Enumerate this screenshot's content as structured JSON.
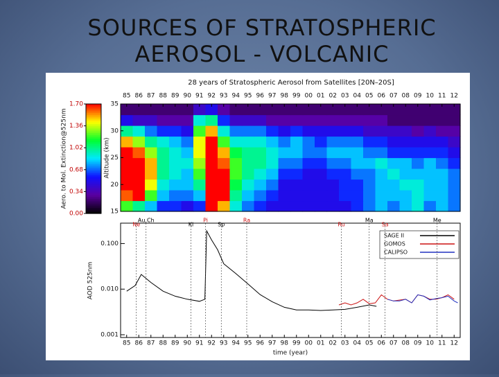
{
  "slide": {
    "title_lines": [
      "SOURCES OF STRATOSPHERIC",
      "AEROSOL - VOLCANIC"
    ]
  },
  "chart_data": [
    {
      "type": "heatmap",
      "title": "28 years of Stratospheric Aerosol from Satellites [20N–20S]",
      "ylabel": "Altitude (km)",
      "colorbar_label": "Aero. to Mol. Extinction@525nm",
      "x": [
        1985,
        1986,
        1987,
        1988,
        1989,
        1990,
        1991,
        1992,
        1993,
        1994,
        1995,
        1996,
        1997,
        1998,
        1999,
        2000,
        2001,
        2002,
        2003,
        2004,
        2005,
        2006,
        2007,
        2008,
        2009,
        2010,
        2011,
        2012
      ],
      "y": [
        16,
        18,
        20,
        22,
        24,
        26,
        28,
        30,
        32,
        34
      ],
      "values": [
        [
          1.2,
          1.0,
          0.8,
          0.6,
          0.6,
          0.5,
          0.6,
          1.7,
          1.5,
          0.9,
          0.7,
          0.6,
          0.5,
          0.5,
          0.5,
          0.5,
          0.5,
          0.5,
          0.5,
          0.6,
          0.7,
          0.8,
          0.7,
          0.8,
          0.9,
          0.7,
          0.8,
          0.7
        ],
        [
          1.6,
          1.7,
          1.2,
          0.8,
          0.7,
          0.7,
          0.8,
          1.7,
          1.7,
          1.0,
          0.8,
          0.7,
          0.6,
          0.5,
          0.5,
          0.5,
          0.5,
          0.5,
          0.6,
          0.6,
          0.7,
          0.8,
          0.8,
          0.8,
          0.9,
          0.8,
          0.8,
          0.7
        ],
        [
          1.7,
          1.7,
          1.4,
          0.9,
          0.8,
          0.8,
          1.0,
          1.7,
          1.7,
          1.1,
          0.9,
          0.8,
          0.7,
          0.5,
          0.5,
          0.5,
          0.5,
          0.5,
          0.6,
          0.6,
          0.7,
          0.8,
          0.8,
          0.9,
          0.9,
          0.8,
          0.8,
          0.7
        ],
        [
          1.7,
          1.7,
          1.5,
          1.0,
          0.9,
          0.8,
          1.2,
          1.7,
          1.7,
          1.2,
          1.0,
          0.9,
          0.8,
          0.6,
          0.6,
          0.5,
          0.5,
          0.6,
          0.6,
          0.7,
          0.7,
          0.8,
          0.9,
          0.8,
          0.8,
          0.8,
          0.8,
          0.7
        ],
        [
          1.7,
          1.7,
          1.5,
          1.0,
          0.9,
          0.9,
          1.3,
          1.7,
          1.6,
          1.2,
          1.0,
          1.0,
          0.9,
          0.7,
          0.7,
          0.6,
          0.6,
          0.7,
          0.7,
          0.8,
          0.8,
          0.9,
          0.8,
          0.8,
          0.7,
          0.8,
          0.7,
          0.6
        ],
        [
          1.7,
          1.6,
          1.3,
          1.0,
          0.9,
          0.8,
          1.4,
          1.7,
          1.5,
          1.1,
          1.0,
          1.0,
          0.9,
          0.8,
          0.8,
          0.7,
          0.7,
          0.8,
          0.8,
          0.8,
          0.7,
          0.7,
          0.6,
          0.6,
          0.6,
          0.6,
          0.6,
          0.5
        ],
        [
          1.5,
          1.3,
          1.0,
          0.9,
          0.8,
          0.7,
          1.4,
          1.7,
          1.2,
          0.9,
          0.9,
          0.9,
          0.8,
          0.7,
          0.8,
          0.7,
          0.6,
          0.7,
          0.7,
          0.7,
          0.6,
          0.6,
          0.5,
          0.5,
          0.5,
          0.5,
          0.5,
          0.4
        ],
        [
          1.0,
          0.9,
          0.7,
          0.6,
          0.6,
          0.5,
          1.2,
          1.5,
          0.9,
          0.7,
          0.7,
          0.7,
          0.6,
          0.5,
          0.6,
          0.5,
          0.5,
          0.5,
          0.5,
          0.5,
          0.4,
          0.4,
          0.4,
          0.4,
          0.3,
          0.4,
          0.3,
          0.3
        ],
        [
          0.5,
          0.4,
          0.4,
          0.3,
          0.3,
          0.3,
          0.9,
          1.0,
          0.6,
          0.4,
          0.4,
          0.4,
          0.3,
          0.3,
          0.3,
          0.3,
          0.3,
          0.3,
          0.3,
          0.3,
          0.3,
          0.3,
          0.2,
          0.2,
          0.2,
          0.2,
          0.2,
          0.2
        ],
        [
          0.2,
          0.2,
          0.2,
          0.2,
          0.2,
          0.2,
          0.4,
          0.5,
          0.3,
          0.2,
          0.2,
          0.2,
          0.2,
          0.2,
          0.2,
          0.2,
          0.2,
          0.2,
          0.2,
          0.2,
          0.2,
          0.2,
          0.2,
          0.2,
          0.2,
          0.2,
          0.2,
          0.2
        ]
      ],
      "xlim": [
        1984.5,
        2012.5
      ],
      "ylim": [
        15,
        35
      ],
      "clim": [
        0,
        1.7
      ],
      "colormap": [
        "#000000",
        "#5a00a0",
        "#1010ff",
        "#00e8ff",
        "#00ff30",
        "#ffff00",
        "#ff0000"
      ],
      "xticks": [
        {
          "value": 1985,
          "label": "85"
        },
        {
          "value": 1986,
          "label": "86"
        },
        {
          "value": 1987,
          "label": "87"
        },
        {
          "value": 1988,
          "label": "88"
        },
        {
          "value": 1989,
          "label": "89"
        },
        {
          "value": 1990,
          "label": "90"
        },
        {
          "value": 1991,
          "label": "91"
        },
        {
          "value": 1992,
          "label": "92"
        },
        {
          "value": 1993,
          "label": "93"
        },
        {
          "value": 1994,
          "label": "94"
        },
        {
          "value": 1995,
          "label": "95"
        },
        {
          "value": 1996,
          "label": "96"
        },
        {
          "value": 1997,
          "label": "97"
        },
        {
          "value": 1998,
          "label": "98"
        },
        {
          "value": 1999,
          "label": "99"
        },
        {
          "value": 2000,
          "label": "00"
        },
        {
          "value": 2001,
          "label": "01"
        },
        {
          "value": 2002,
          "label": "02"
        },
        {
          "value": 2003,
          "label": "03"
        },
        {
          "value": 2004,
          "label": "04"
        },
        {
          "value": 2005,
          "label": "05"
        },
        {
          "value": 2006,
          "label": "06"
        },
        {
          "value": 2007,
          "label": "07"
        },
        {
          "value": 2008,
          "label": "08"
        },
        {
          "value": 2009,
          "label": "09"
        },
        {
          "value": 2010,
          "label": "10"
        },
        {
          "value": 2011,
          "label": "11"
        },
        {
          "value": 2012,
          "label": "12"
        }
      ],
      "yticks": [
        15,
        20,
        25,
        30,
        35
      ],
      "cticks": [
        {
          "value": 0,
          "label": "0.00"
        },
        {
          "value": 0.34,
          "label": "0.34"
        },
        {
          "value": 0.68,
          "label": "0.68"
        },
        {
          "value": 1.02,
          "label": "1.02"
        },
        {
          "value": 1.36,
          "label": "1.36"
        },
        {
          "value": 1.7,
          "label": "1.70"
        }
      ]
    },
    {
      "type": "line",
      "xlabel": "time (year)",
      "ylabel": "AOD 525nm",
      "log_y": true,
      "legend": "upper right",
      "xlim": [
        1984.5,
        2012.5
      ],
      "ylim": [
        0.00087,
        0.28
      ],
      "xticks": [
        {
          "value": 1985,
          "label": "85"
        },
        {
          "value": 1986,
          "label": "86"
        },
        {
          "value": 1987,
          "label": "87"
        },
        {
          "value": 1988,
          "label": "88"
        },
        {
          "value": 1989,
          "label": "89"
        },
        {
          "value": 1990,
          "label": "90"
        },
        {
          "value": 1991,
          "label": "91"
        },
        {
          "value": 1992,
          "label": "92"
        },
        {
          "value": 1993,
          "label": "93"
        },
        {
          "value": 1994,
          "label": "94"
        },
        {
          "value": 1995,
          "label": "95"
        },
        {
          "value": 1996,
          "label": "96"
        },
        {
          "value": 1997,
          "label": "97"
        },
        {
          "value": 1998,
          "label": "98"
        },
        {
          "value": 1999,
          "label": "99"
        },
        {
          "value": 2000,
          "label": "00"
        },
        {
          "value": 2001,
          "label": "01"
        },
        {
          "value": 2002,
          "label": "02"
        },
        {
          "value": 2003,
          "label": "03"
        },
        {
          "value": 2004,
          "label": "04"
        },
        {
          "value": 2005,
          "label": "05"
        },
        {
          "value": 2006,
          "label": "06"
        },
        {
          "value": 2007,
          "label": "07"
        },
        {
          "value": 2008,
          "label": "08"
        },
        {
          "value": 2009,
          "label": "09"
        },
        {
          "value": 2010,
          "label": "10"
        },
        {
          "value": 2011,
          "label": "11"
        },
        {
          "value": 2012,
          "label": "12"
        }
      ],
      "yticks": [
        0.001,
        {
          "value": 0.01,
          "label": "0.010"
        },
        {
          "value": 0.1,
          "label": "0.100"
        }
      ],
      "series": [
        {
          "name": "SAGE II",
          "color": "#000000",
          "x": [
            1985,
            1985.7,
            1986.2,
            1987,
            1988,
            1989,
            1990,
            1991,
            1991.45,
            1991.6,
            1992,
            1992.5,
            1993,
            1994,
            1995,
            1996,
            1997,
            1998,
            1999,
            2000,
            2001,
            2002,
            2003,
            2004,
            2005,
            2005.6
          ],
          "values": [
            0.009,
            0.012,
            0.021,
            0.014,
            0.009,
            0.007,
            0.006,
            0.0054,
            0.006,
            0.19,
            0.12,
            0.073,
            0.036,
            0.022,
            0.013,
            0.0076,
            0.0053,
            0.004,
            0.0035,
            0.0035,
            0.0034,
            0.0035,
            0.0036,
            0.004,
            0.0045,
            0.0042
          ]
        },
        {
          "name": "GOMOS",
          "color": "#cc1010",
          "x": [
            2002.5,
            2003,
            2003.5,
            2004,
            2004.5,
            2005,
            2005.5,
            2006,
            2006.5,
            2007,
            2008,
            2008.5,
            2009,
            2009.5,
            2010,
            2010.5,
            2011,
            2011.5,
            2012
          ],
          "values": [
            0.0045,
            0.005,
            0.0045,
            0.005,
            0.006,
            0.0048,
            0.005,
            0.0075,
            0.006,
            0.0055,
            0.006,
            0.005,
            0.0075,
            0.007,
            0.006,
            0.006,
            0.0065,
            0.0075,
            0.006
          ]
        },
        {
          "name": "CALIPSO",
          "color": "#2030c0",
          "x": [
            2006.5,
            2007,
            2007.5,
            2008,
            2008.5,
            2009,
            2009.5,
            2010,
            2010.5,
            2011,
            2011.5,
            2012,
            2012.3
          ],
          "values": [
            0.006,
            0.0055,
            0.0055,
            0.006,
            0.005,
            0.0075,
            0.007,
            0.0058,
            0.0062,
            0.0065,
            0.007,
            0.0055,
            0.005
          ]
        }
      ],
      "annotations": [
        {
          "text": "Ne",
          "x": 1985.8,
          "color": "#cc1010"
        },
        {
          "text": "Au,Ch",
          "x": 1986.6,
          "color": "#000000"
        },
        {
          "text": "Kl",
          "x": 1990.3,
          "color": "#000000"
        },
        {
          "text": "Pi",
          "x": 1991.5,
          "color": "#cc1010"
        },
        {
          "text": "Sp",
          "x": 1992.8,
          "color": "#000000"
        },
        {
          "text": "Ra",
          "x": 1994.9,
          "color": "#cc1010"
        },
        {
          "text": "Ru",
          "x": 2002.7,
          "color": "#cc1010"
        },
        {
          "text": "Ma",
          "x": 2005.0,
          "color": "#000000"
        },
        {
          "text": "Sa",
          "x": 2006.3,
          "color": "#cc1010"
        },
        {
          "text": "Me",
          "x": 2010.6,
          "color": "#000000"
        }
      ]
    }
  ]
}
